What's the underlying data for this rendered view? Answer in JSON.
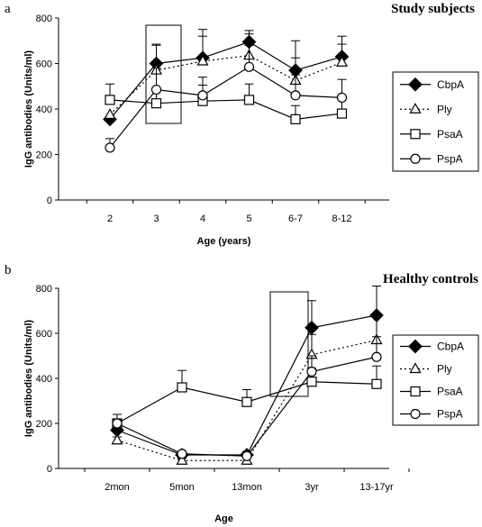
{
  "chart_data": [
    {
      "type": "line",
      "panel_label": "a",
      "title": "Study subjects",
      "xlabel": "Age (years)",
      "ylabel": "IgG antibodies (Units/ml)",
      "ylim": [
        0,
        800
      ],
      "yticks": [
        "0",
        "200",
        "400",
        "600",
        "800"
      ],
      "categories": [
        "2",
        "3",
        "4",
        "5",
        "6-7",
        "8-12"
      ],
      "grid": false,
      "legend_position": "right",
      "highlight_box_category": "3",
      "series": [
        {
          "name": "CbpA",
          "marker": "diamond-filled",
          "dash": "solid",
          "values": [
            355,
            600,
            625,
            695,
            570,
            630
          ],
          "errors": [
            null,
            85,
            125,
            50,
            130,
            90
          ]
        },
        {
          "name": "Ply",
          "marker": "triangle-open",
          "dash": "dotted",
          "values": [
            375,
            570,
            610,
            635,
            525,
            605
          ],
          "errors": [
            null,
            110,
            110,
            95,
            100,
            80
          ]
        },
        {
          "name": "PsaA",
          "marker": "square-open",
          "dash": "solid",
          "values": [
            440,
            425,
            435,
            440,
            355,
            380
          ],
          "errors": [
            70,
            70,
            70,
            70,
            60,
            60
          ]
        },
        {
          "name": "PspA",
          "marker": "circle-open",
          "dash": "solid",
          "values": [
            230,
            485,
            460,
            585,
            460,
            450
          ],
          "errors": [
            40,
            95,
            80,
            95,
            90,
            80
          ]
        }
      ]
    },
    {
      "type": "line",
      "panel_label": "b",
      "title": "Healthy controls",
      "xlabel": "Age",
      "ylabel": "IgG antibodies (Units/ml)",
      "ylim": [
        0,
        800
      ],
      "yticks": [
        "0",
        "200",
        "400",
        "600",
        "800"
      ],
      "categories": [
        "2mon",
        "5mon",
        "13mon",
        "3yr",
        "13-17yr"
      ],
      "grid": false,
      "legend_position": "right",
      "highlight_box_category": "3yr",
      "series": [
        {
          "name": "CbpA",
          "marker": "diamond-filled",
          "dash": "solid",
          "values": [
            170,
            60,
            60,
            625,
            680
          ],
          "errors": [
            20,
            15,
            15,
            120,
            130
          ]
        },
        {
          "name": "Ply",
          "marker": "triangle-open",
          "dash": "dotted",
          "values": [
            125,
            35,
            35,
            505,
            570
          ],
          "errors": [
            15,
            10,
            10,
            90,
            100
          ]
        },
        {
          "name": "PsaA",
          "marker": "square-open",
          "dash": "solid",
          "values": [
            200,
            360,
            295,
            385,
            375
          ],
          "errors": [
            40,
            75,
            55,
            60,
            80
          ]
        },
        {
          "name": "PspA",
          "marker": "circle-open",
          "dash": "solid",
          "values": [
            200,
            65,
            55,
            430,
            495
          ],
          "errors": [
            40,
            10,
            10,
            70,
            90
          ]
        }
      ]
    }
  ]
}
